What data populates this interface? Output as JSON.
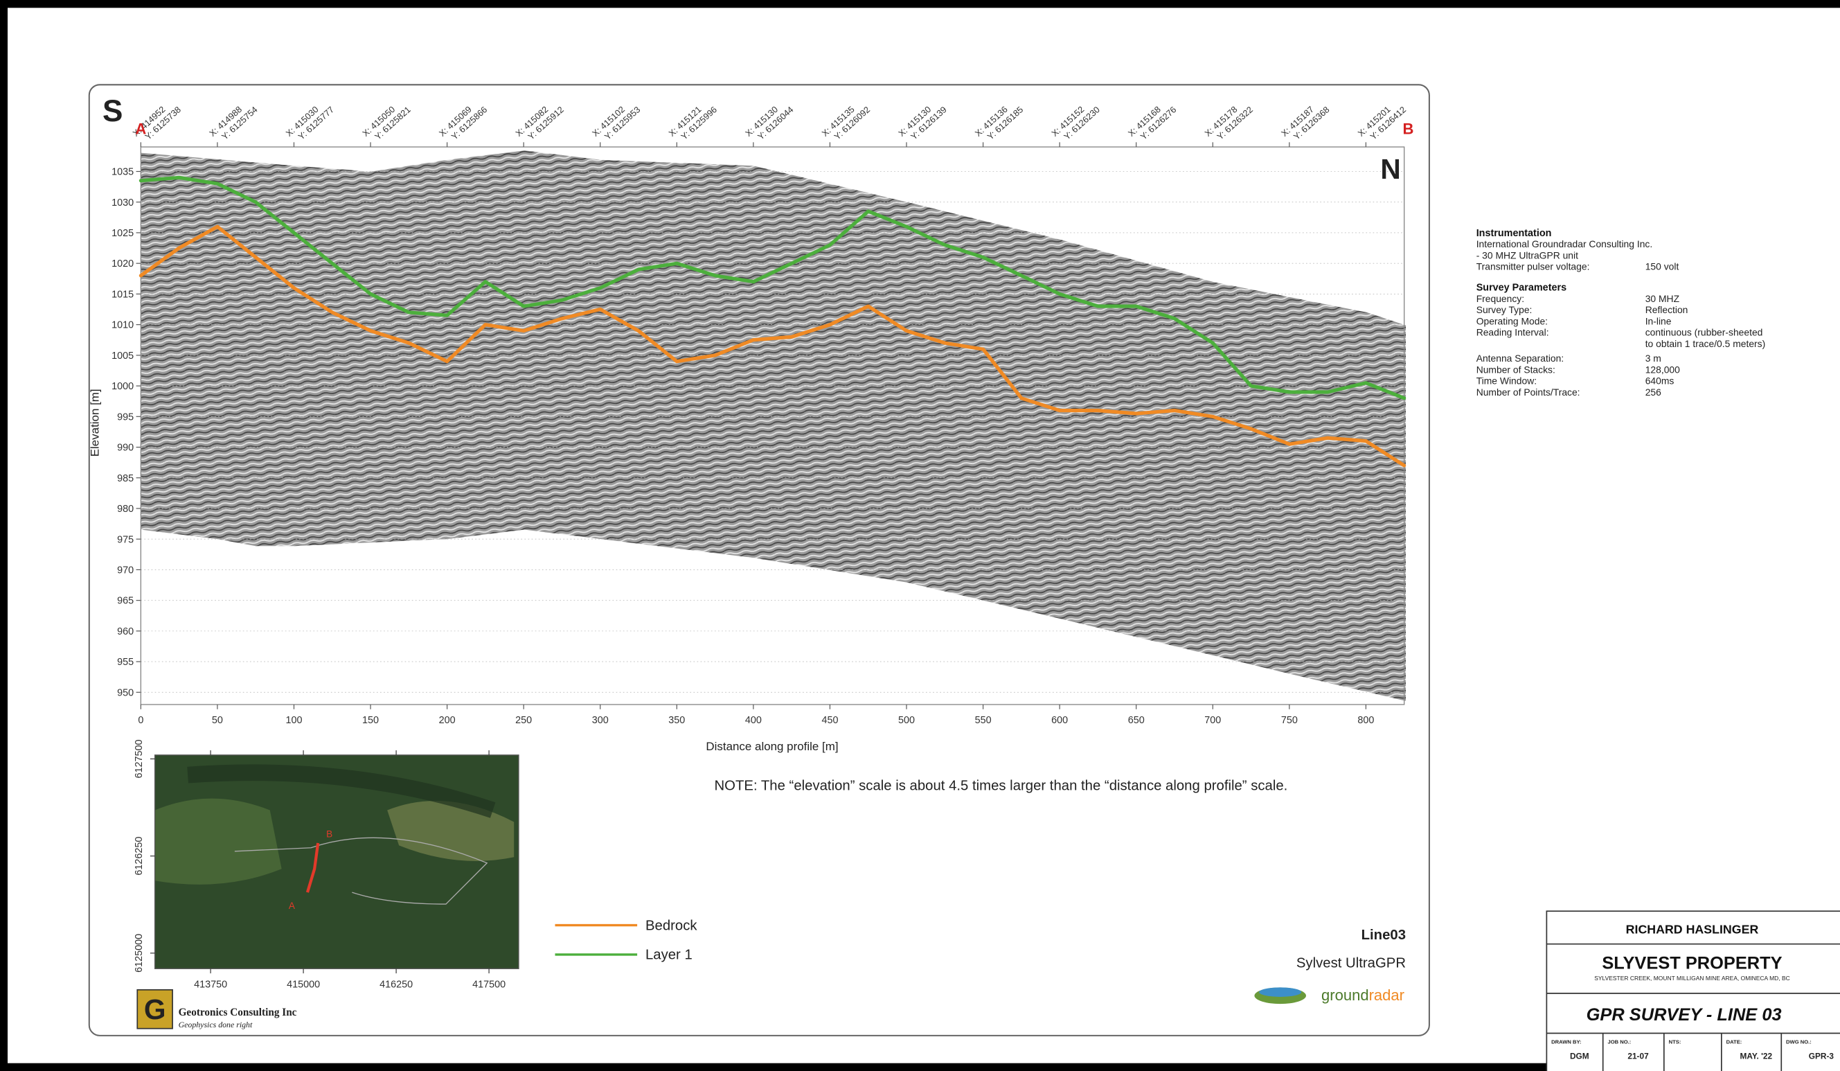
{
  "chart_data": {
    "type": "line",
    "x_label": "Distance along profile [m]",
    "y_label": "Elevation [m]",
    "start_label": "S",
    "end_label": "N",
    "point_a": "A",
    "point_b": "B",
    "note": "NOTE: The “elevation” scale is about 4.5 times larger than the “distance along profile” scale.",
    "x": [
      0,
      25,
      50,
      75,
      100,
      125,
      150,
      175,
      200,
      225,
      250,
      275,
      300,
      325,
      350,
      375,
      400,
      425,
      450,
      475,
      500,
      525,
      550,
      575,
      600,
      625,
      650,
      675,
      700,
      725,
      750,
      775,
      800,
      825
    ],
    "series": [
      {
        "name": "Bedrock",
        "color": "#f08a24",
        "values": [
          1018,
          1022.5,
          1026,
          1021,
          1016,
          1012,
          1009,
          1007,
          1004,
          1010,
          1009,
          1011,
          1012.5,
          1009,
          1004,
          1005,
          1007.5,
          1008,
          1010,
          1013,
          1009,
          1007,
          1006,
          998,
          996,
          996,
          995.5,
          996,
          995,
          993,
          990.5,
          991.5,
          991,
          987
        ]
      },
      {
        "name": "Layer 1",
        "color": "#4caf3c",
        "values": [
          1033.5,
          1034,
          1033,
          1030,
          1025,
          1020,
          1015,
          1012,
          1011.5,
          1017,
          1013,
          1014,
          1016,
          1019,
          1020,
          1018,
          1017,
          1020,
          1023,
          1028.5,
          1026,
          1023,
          1021,
          1018,
          1015,
          1013,
          1013,
          1011,
          1007,
          1000,
          999,
          999,
          1000.5,
          998
        ]
      }
    ],
    "xlim": [
      0,
      825
    ],
    "xticks": [
      0,
      50,
      100,
      150,
      200,
      250,
      300,
      350,
      400,
      450,
      500,
      550,
      600,
      650,
      700,
      750,
      800
    ],
    "ylim": [
      948,
      1039
    ],
    "yticks": [
      950,
      955,
      960,
      965,
      970,
      975,
      980,
      985,
      990,
      995,
      1000,
      1005,
      1010,
      1015,
      1020,
      1025,
      1030,
      1035
    ],
    "grid": true,
    "top_labels": [
      {
        "x": "X: 414952",
        "y": "Y: 6125738"
      },
      {
        "x": "X: 414988",
        "y": "Y: 6125754"
      },
      {
        "x": "X: 415030",
        "y": "Y: 6125777"
      },
      {
        "x": "X: 415050",
        "y": "Y: 6125821"
      },
      {
        "x": "X: 415069",
        "y": "Y: 6125866"
      },
      {
        "x": "X: 415082",
        "y": "Y: 6125912"
      },
      {
        "x": "X: 415102",
        "y": "Y: 6125953"
      },
      {
        "x": "X: 415121",
        "y": "Y: 6125996"
      },
      {
        "x": "X: 415130",
        "y": "Y: 6126044"
      },
      {
        "x": "X: 415135",
        "y": "Y: 6126092"
      },
      {
        "x": "X: 415130",
        "y": "Y: 6126139"
      },
      {
        "x": "X: 415136",
        "y": "Y: 6126185"
      },
      {
        "x": "X: 415152",
        "y": "Y: 6126230"
      },
      {
        "x": "X: 415168",
        "y": "Y: 6126276"
      },
      {
        "x": "X: 415178",
        "y": "Y: 6126322"
      },
      {
        "x": "X: 415187",
        "y": "Y: 6126368"
      },
      {
        "x": "X: 415201",
        "y": "Y: 6126412"
      }
    ]
  },
  "inset_map": {
    "xlim": [
      413000,
      417900
    ],
    "xticks": [
      413750,
      415000,
      416250,
      417500
    ],
    "ylim": [
      6124800,
      6127550
    ],
    "yticks": [
      6125000,
      6126250,
      6127500
    ],
    "label_a": "A",
    "label_b": "B"
  },
  "line_name": "Line03",
  "product": "Sylvest UltraGPR",
  "logo": {
    "part1": "ground",
    "part2": "radar"
  },
  "company": {
    "name": "Geotronics Consulting Inc",
    "tagline": "Geophysics done right"
  },
  "instrumentation": {
    "heading": "Instrumentation",
    "lines": [
      "International Groundradar Consulting Inc.",
      "   - 30 MHZ UltraGPR unit"
    ],
    "items": [
      {
        "label": "Transmitter pulser voltage:",
        "value": [
          "150 volt"
        ]
      }
    ]
  },
  "survey_parameters": {
    "heading": "Survey Parameters",
    "items": [
      {
        "label": "Frequency:",
        "value": [
          "30 MHZ"
        ]
      },
      {
        "label": "Survey Type:",
        "value": [
          "Reflection"
        ]
      },
      {
        "label": "Operating Mode:",
        "value": [
          "In-line"
        ]
      },
      {
        "label": "Reading Interval:",
        "value": [
          "continuous (rubber-sheeted",
          " to obtain 1 trace/0.5 meters)"
        ]
      },
      {
        "label": "Antenna Separation:",
        "value": [
          " 3 m"
        ]
      },
      {
        "label": "Number of Stacks:",
        "value": [
          "128,000"
        ]
      },
      {
        "label": "Time Window:",
        "value": [
          " 640ms"
        ]
      },
      {
        "label": "Number of Points/Trace:",
        "value": [
          " 256"
        ]
      }
    ]
  },
  "title_block": {
    "client": "RICHARD HASLINGER",
    "property": "SLYVEST PROPERTY",
    "location": "SYLVESTER CREEK, MOUNT MILLIGAN MINE AREA, OMINECA MD, BC",
    "survey": "GPR SURVEY  -  LINE 03",
    "cells": [
      {
        "label": "DRAWN BY:",
        "value": "DGM"
      },
      {
        "label": "JOB NO.:",
        "value": "21-07"
      },
      {
        "label": "NTS:",
        "value": ""
      },
      {
        "label": "DATE:",
        "value": "MAY. '22"
      },
      {
        "label": "DWG NO.:",
        "value": "GPR-3"
      }
    ]
  }
}
